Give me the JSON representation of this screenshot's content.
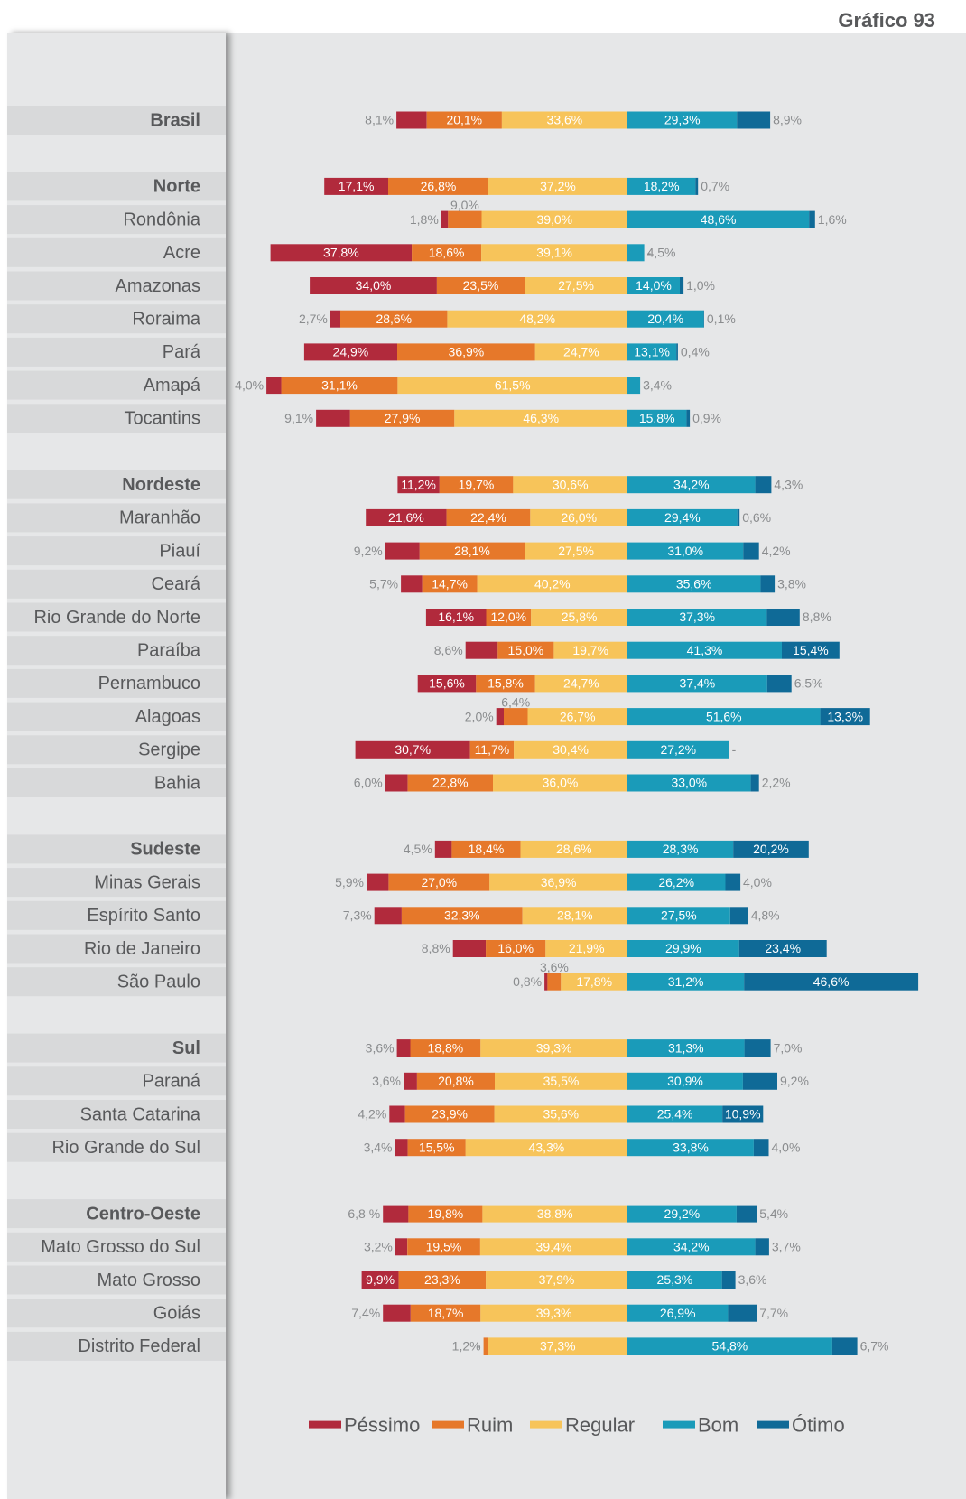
{
  "title": "Gráfico 93",
  "chart_data": {
    "type": "bar",
    "orientation": "horizontal",
    "stacking": "diverging",
    "series": [
      {
        "name": "Péssimo",
        "color": "#b12a3c"
      },
      {
        "name": "Ruim",
        "color": "#e6782a"
      },
      {
        "name": "Regular",
        "color": "#f7c45a"
      },
      {
        "name": "Bom",
        "color": "#1a9bb9"
      },
      {
        "name": "Ótimo",
        "color": "#0f6a97"
      }
    ],
    "rows": [
      {
        "label": "Brasil",
        "bold": true,
        "values": [
          8.1,
          20.1,
          33.6,
          29.3,
          8.9
        ],
        "labels": [
          "8,1%",
          "20,1%",
          "33,6%",
          "29,3%",
          "8,9%"
        ]
      },
      {
        "label": "Norte",
        "bold": true,
        "values": [
          17.1,
          26.8,
          37.2,
          18.2,
          0.7
        ],
        "labels": [
          "17,1%",
          "26,8%",
          "37,2%",
          "18,2%",
          "0,7%"
        ]
      },
      {
        "label": "Rondônia",
        "values": [
          1.8,
          9.0,
          39.0,
          48.6,
          1.6
        ],
        "labels": [
          "1,8%",
          "9,0%",
          "39,0%",
          "48,6%",
          "1,6%"
        ]
      },
      {
        "label": "Acre",
        "values": [
          37.8,
          18.6,
          39.1,
          4.5,
          0
        ],
        "labels": [
          "37,8%",
          "18,6%",
          "39,1%",
          "4,5%",
          "-"
        ]
      },
      {
        "label": "Amazonas",
        "values": [
          34.0,
          23.5,
          27.5,
          14.0,
          1.0
        ],
        "labels": [
          "34,0%",
          "23,5%",
          "27,5%",
          "14,0%",
          "1,0%"
        ]
      },
      {
        "label": "Roraima",
        "values": [
          2.7,
          28.6,
          48.2,
          20.4,
          0.1
        ],
        "labels": [
          "2,7%",
          "28,6%",
          "48,2%",
          "20,4%",
          "0,1%"
        ]
      },
      {
        "label": "Pará",
        "values": [
          24.9,
          36.9,
          24.7,
          13.1,
          0.4
        ],
        "labels": [
          "24,9%",
          "36,9%",
          "24,7%",
          "13,1%",
          "0,4%"
        ]
      },
      {
        "label": "Amapá",
        "values": [
          4.0,
          31.1,
          61.5,
          3.4,
          0
        ],
        "labels": [
          "4,0%",
          "31,1%",
          "61,5%",
          "3,4%",
          "-"
        ]
      },
      {
        "label": "Tocantins",
        "values": [
          9.1,
          27.9,
          46.3,
          15.8,
          0.9
        ],
        "labels": [
          "9,1%",
          "27,9%",
          "46,3%",
          "15,8%",
          "0,9%"
        ]
      },
      {
        "label": "Nordeste",
        "bold": true,
        "values": [
          11.2,
          19.7,
          30.6,
          34.2,
          4.3
        ],
        "labels": [
          "11,2%",
          "19,7%",
          "30,6%",
          "34,2%",
          "4,3%"
        ]
      },
      {
        "label": "Maranhão",
        "values": [
          21.6,
          22.4,
          26.0,
          29.4,
          0.6
        ],
        "labels": [
          "21,6%",
          "22,4%",
          "26,0%",
          "29,4%",
          "0,6%"
        ]
      },
      {
        "label": "Piauí",
        "values": [
          9.2,
          28.1,
          27.5,
          31.0,
          4.2
        ],
        "labels": [
          "9,2%",
          "28,1%",
          "27,5%",
          "31,0%",
          "4,2%"
        ]
      },
      {
        "label": "Ceará",
        "values": [
          5.7,
          14.7,
          40.2,
          35.6,
          3.8
        ],
        "labels": [
          "5,7%",
          "14,7%",
          "40,2%",
          "35,6%",
          "3,8%"
        ]
      },
      {
        "label": "Rio Grande do Norte",
        "values": [
          16.1,
          12.0,
          25.8,
          37.3,
          8.8
        ],
        "labels": [
          "16,1%",
          "12,0%",
          "25,8%",
          "37,3%",
          "8,8%"
        ]
      },
      {
        "label": "Paraíba",
        "values": [
          8.6,
          15.0,
          19.7,
          41.3,
          15.4
        ],
        "labels": [
          "8,6%",
          "15,0%",
          "19,7%",
          "41,3%",
          "15,4%"
        ]
      },
      {
        "label": "Pernambuco",
        "values": [
          15.6,
          15.8,
          24.7,
          37.4,
          6.5
        ],
        "labels": [
          "15,6%",
          "15,8%",
          "24,7%",
          "37,4%",
          "6,5%"
        ]
      },
      {
        "label": "Alagoas",
        "values": [
          2.0,
          6.4,
          26.7,
          51.6,
          13.3
        ],
        "labels": [
          "2,0%",
          "6,4%",
          "26,7%",
          "51,6%",
          "13,3%"
        ]
      },
      {
        "label": "Sergipe",
        "values": [
          30.7,
          11.7,
          30.4,
          27.2,
          0
        ],
        "labels": [
          "30,7%",
          "11,7%",
          "30,4%",
          "27,2%",
          "-"
        ]
      },
      {
        "label": "Bahia",
        "values": [
          6.0,
          22.8,
          36.0,
          33.0,
          2.2
        ],
        "labels": [
          "6,0%",
          "22,8%",
          "36,0%",
          "33,0%",
          "2,2%"
        ]
      },
      {
        "label": "Sudeste",
        "bold": true,
        "values": [
          4.5,
          18.4,
          28.6,
          28.3,
          20.2
        ],
        "labels": [
          "4,5%",
          "18,4%",
          "28,6%",
          "28,3%",
          "20,2%"
        ]
      },
      {
        "label": "Minas Gerais",
        "values": [
          5.9,
          27.0,
          36.9,
          26.2,
          4.0
        ],
        "labels": [
          "5,9%",
          "27,0%",
          "36,9%",
          "26,2%",
          "4,0%"
        ]
      },
      {
        "label": "Espírito Santo",
        "values": [
          7.3,
          32.3,
          28.1,
          27.5,
          4.8
        ],
        "labels": [
          "7,3%",
          "32,3%",
          "28,1%",
          "27,5%",
          "4,8%"
        ]
      },
      {
        "label": "Rio de Janeiro",
        "values": [
          8.8,
          16.0,
          21.9,
          29.9,
          23.4
        ],
        "labels": [
          "8,8%",
          "16,0%",
          "21,9%",
          "29,9%",
          "23,4%"
        ]
      },
      {
        "label": "São Paulo",
        "values": [
          0.8,
          3.6,
          17.8,
          31.2,
          46.6
        ],
        "labels": [
          "0,8%",
          "3,6%",
          "17,8%",
          "31,2%",
          "46,6%"
        ]
      },
      {
        "label": "Sul",
        "bold": true,
        "values": [
          3.6,
          18.8,
          39.3,
          31.3,
          7.0
        ],
        "labels": [
          "3,6%",
          "18,8%",
          "39,3%",
          "31,3%",
          "7,0%"
        ]
      },
      {
        "label": "Paraná",
        "values": [
          3.6,
          20.8,
          35.5,
          30.9,
          9.2
        ],
        "labels": [
          "3,6%",
          "20,8%",
          "35,5%",
          "30,9%",
          "9,2%"
        ]
      },
      {
        "label": "Santa Catarina",
        "values": [
          4.2,
          23.9,
          35.6,
          25.4,
          10.9
        ],
        "labels": [
          "4,2%",
          "23,9%",
          "35,6%",
          "25,4%",
          "10,9%"
        ]
      },
      {
        "label": "Rio Grande do Sul",
        "values": [
          3.4,
          15.5,
          43.3,
          33.8,
          4.0
        ],
        "labels": [
          "3,4%",
          "15,5%",
          "43,3%",
          "33,8%",
          "4,0%"
        ]
      },
      {
        "label": "Centro-Oeste",
        "bold": true,
        "values": [
          6.8,
          19.8,
          38.8,
          29.2,
          5.4
        ],
        "labels": [
          "6,8 %",
          "19,8%",
          "38,8%",
          "29,2%",
          "5,4%"
        ]
      },
      {
        "label": "Mato Grosso do Sul",
        "values": [
          3.2,
          19.5,
          39.4,
          34.2,
          3.7
        ],
        "labels": [
          "3,2%",
          "19,5%",
          "39,4%",
          "34,2%",
          "3,7%"
        ]
      },
      {
        "label": "Mato Grosso",
        "values": [
          9.9,
          23.3,
          37.9,
          25.3,
          3.6
        ],
        "labels": [
          "9,9%",
          "23,3%",
          "37,9%",
          "25,3%",
          "3,6%"
        ]
      },
      {
        "label": "Goiás",
        "values": [
          7.4,
          18.7,
          39.3,
          26.9,
          7.7
        ],
        "labels": [
          "7,4%",
          "18,7%",
          "39,3%",
          "26,9%",
          "7,7%"
        ]
      },
      {
        "label": "Distrito Federal",
        "values": [
          0,
          1.2,
          37.3,
          54.8,
          6.7
        ],
        "labels": [
          "-",
          "1,2%",
          "37,3%",
          "54,8%",
          "6,7%"
        ]
      }
    ],
    "legend": [
      "Péssimo",
      "Ruim",
      "Regular",
      "Bom",
      "Ótimo"
    ],
    "legend_position": "bottom"
  }
}
